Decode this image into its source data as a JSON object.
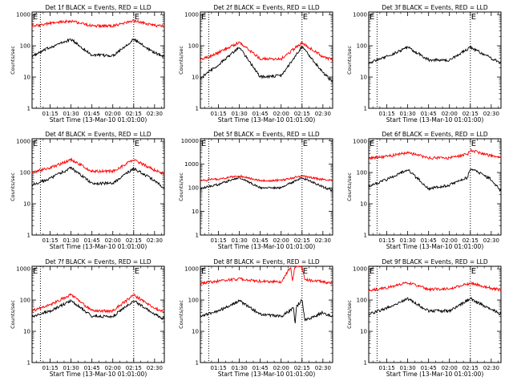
{
  "page": {
    "background": "#ffffff",
    "series_colors": {
      "events": "#000000",
      "lld": "#ff0000"
    }
  },
  "chart_data": [
    {
      "type": "line",
      "title": "Det 1f BLACK = Events, RED = LLD",
      "xlabel": "Start Time (13-Mar-10 01:01:00)",
      "ylabel": "Counts/sec",
      "yscale": "log",
      "ylim": [
        1,
        1200
      ],
      "xlim": [
        "01:02",
        "02:37"
      ],
      "x_ticks": [
        "01:15",
        "01:30",
        "01:45",
        "02:00",
        "02:15",
        "02:30"
      ],
      "y_ticks": [
        "1",
        "10",
        "100",
        "1000"
      ],
      "vlines": [
        "01:08",
        "02:15"
      ],
      "markers": [
        {
          "text": "E",
          "x": "01:02"
        },
        {
          "text": "E",
          "x": "02:15"
        }
      ],
      "series": [
        {
          "name": "BLACK",
          "color": "#000000",
          "x": [
            "01:02",
            "01:15",
            "01:30",
            "01:45",
            "02:00",
            "02:15",
            "02:30",
            "02:37"
          ],
          "values": [
            45,
            90,
            160,
            50,
            48,
            160,
            60,
            45
          ]
        },
        {
          "name": "RED",
          "color": "#ff0000",
          "x": [
            "01:02",
            "01:15",
            "01:30",
            "01:45",
            "02:00",
            "02:15",
            "02:30",
            "02:37"
          ],
          "values": [
            420,
            520,
            620,
            430,
            430,
            620,
            450,
            420
          ]
        }
      ]
    },
    {
      "type": "line",
      "title": "Det 2f BLACK = Events, RED = LLD",
      "xlabel": "Start Time (13-Mar-10 01:01:00)",
      "ylabel": "Counts/sec",
      "yscale": "log",
      "ylim": [
        1,
        1200
      ],
      "xlim": [
        "01:02",
        "02:37"
      ],
      "x_ticks": [
        "01:15",
        "01:30",
        "01:45",
        "02:00",
        "02:15",
        "02:30"
      ],
      "y_ticks": [
        "1",
        "10",
        "100",
        "1000"
      ],
      "vlines": [
        "01:08",
        "02:15"
      ],
      "markers": [
        {
          "text": "E",
          "x": "01:02"
        },
        {
          "text": "E",
          "x": "02:15"
        }
      ],
      "series": [
        {
          "name": "BLACK",
          "color": "#000000",
          "x": [
            "01:02",
            "01:15",
            "01:30",
            "01:45",
            "02:00",
            "02:15",
            "02:30",
            "02:37"
          ],
          "values": [
            9,
            25,
            90,
            10,
            11,
            95,
            14,
            7
          ]
        },
        {
          "name": "RED",
          "color": "#ff0000",
          "x": [
            "01:02",
            "01:15",
            "01:30",
            "01:45",
            "02:00",
            "02:15",
            "02:30",
            "02:37"
          ],
          "values": [
            35,
            60,
            130,
            38,
            38,
            125,
            45,
            35
          ]
        }
      ]
    },
    {
      "type": "line",
      "title": "Det 3f BLACK = Events, RED = LLD",
      "xlabel": "Start Time (13-Mar-10 01:01:00)",
      "ylabel": "Counts/sec",
      "yscale": "log",
      "ylim": [
        1,
        1200
      ],
      "xlim": [
        "01:02",
        "02:37"
      ],
      "x_ticks": [
        "01:15",
        "01:30",
        "01:45",
        "02:00",
        "02:15",
        "02:30"
      ],
      "y_ticks": [
        "1",
        "10",
        "100",
        "1000"
      ],
      "vlines": [
        "01:08",
        "02:15"
      ],
      "markers": [
        {
          "text": "E",
          "x": "01:02"
        },
        {
          "text": "E",
          "x": "02:15"
        }
      ],
      "series": [
        {
          "name": "BLACK",
          "color": "#000000",
          "x": [
            "01:02",
            "01:15",
            "01:30",
            "01:45",
            "02:00",
            "02:15",
            "02:30",
            "02:37"
          ],
          "values": [
            28,
            45,
            90,
            35,
            35,
            90,
            40,
            28
          ]
        }
      ]
    },
    {
      "type": "line",
      "title": "Det 4f BLACK = Events, RED = LLD",
      "xlabel": "Start Time (13-Mar-10 01:01:00)",
      "ylabel": "Counts/sec",
      "yscale": "log",
      "ylim": [
        1,
        1200
      ],
      "xlim": [
        "01:02",
        "02:37"
      ],
      "x_ticks": [
        "01:15",
        "01:30",
        "01:45",
        "02:00",
        "02:15",
        "02:30"
      ],
      "y_ticks": [
        "1",
        "10",
        "100",
        "1000"
      ],
      "vlines": [
        "01:08",
        "02:15"
      ],
      "markers": [
        {
          "text": "E",
          "x": "01:02"
        },
        {
          "text": "E",
          "x": "02:15"
        }
      ],
      "series": [
        {
          "name": "BLACK",
          "color": "#000000",
          "x": [
            "01:02",
            "01:15",
            "01:30",
            "01:45",
            "02:00",
            "02:15",
            "02:30",
            "02:37"
          ],
          "values": [
            40,
            65,
            140,
            45,
            45,
            135,
            55,
            30
          ]
        },
        {
          "name": "RED",
          "color": "#ff0000",
          "x": [
            "01:02",
            "01:15",
            "01:30",
            "01:45",
            "02:00",
            "02:15",
            "02:30",
            "02:37"
          ],
          "values": [
            100,
            140,
            260,
            110,
            110,
            255,
            120,
            90
          ]
        }
      ]
    },
    {
      "type": "line",
      "title": "Det 5f BLACK = Events, RED = LLD",
      "xlabel": "Start Time (13-Mar-10 01:01:00)",
      "ylabel": "Counts/sec",
      "yscale": "log",
      "ylim": [
        1,
        12000
      ],
      "xlim": [
        "01:02",
        "02:37"
      ],
      "x_ticks": [
        "01:15",
        "01:30",
        "01:45",
        "02:00",
        "02:15",
        "02:30"
      ],
      "y_ticks": [
        "1",
        "10",
        "100",
        "1000",
        "10000"
      ],
      "vlines": [
        "01:08",
        "02:15"
      ],
      "markers": [
        {
          "text": "E",
          "x": "01:02"
        },
        {
          "text": "E",
          "x": "02:15"
        }
      ],
      "series": [
        {
          "name": "BLACK",
          "color": "#000000",
          "x": [
            "01:02",
            "01:15",
            "01:30",
            "01:45",
            "02:00",
            "02:15",
            "02:30",
            "02:37"
          ],
          "values": [
            95,
            140,
            280,
            100,
            100,
            275,
            110,
            75
          ]
        },
        {
          "name": "RED",
          "color": "#ff0000",
          "x": [
            "01:02",
            "01:15",
            "01:30",
            "01:45",
            "02:00",
            "02:15",
            "02:30",
            "02:37"
          ],
          "values": [
            200,
            240,
            320,
            200,
            210,
            320,
            220,
            200
          ]
        }
      ]
    },
    {
      "type": "line",
      "title": "Det 6f BLACK = Events, RED = LLD",
      "xlabel": "Start Time (13-Mar-10 01:01:00)",
      "ylabel": "Counts/sec",
      "yscale": "log",
      "ylim": [
        1,
        1200
      ],
      "xlim": [
        "01:02",
        "02:37"
      ],
      "x_ticks": [
        "01:15",
        "01:30",
        "01:45",
        "02:00",
        "02:15",
        "02:30"
      ],
      "y_ticks": [
        "1",
        "10",
        "100",
        "1000"
      ],
      "vlines": [
        "01:08",
        "02:15"
      ],
      "markers": [
        {
          "text": "E",
          "x": "01:02"
        },
        {
          "text": "E",
          "x": "02:15"
        }
      ],
      "series": [
        {
          "name": "BLACK",
          "color": "#000000",
          "x": [
            "01:02",
            "01:15",
            "01:30",
            "01:45",
            "02:00",
            "02:13",
            "02:15",
            "02:30",
            "02:37"
          ],
          "values": [
            35,
            60,
            125,
            30,
            40,
            70,
            140,
            60,
            25
          ]
        },
        {
          "name": "RED",
          "color": "#ff0000",
          "x": [
            "01:02",
            "01:15",
            "01:30",
            "01:45",
            "02:00",
            "02:13",
            "02:15",
            "02:30",
            "02:37"
          ],
          "values": [
            280,
            330,
            430,
            290,
            290,
            380,
            520,
            340,
            300
          ]
        }
      ]
    },
    {
      "type": "line",
      "title": "Det 7f BLACK = Events, RED = LLD",
      "xlabel": "Start Time (13-Mar-10 01:01:00)",
      "ylabel": "Counts/sec",
      "yscale": "log",
      "ylim": [
        1,
        1200
      ],
      "xlim": [
        "01:02",
        "02:37"
      ],
      "x_ticks": [
        "01:15",
        "01:30",
        "01:45",
        "02:00",
        "02:15",
        "02:30"
      ],
      "y_ticks": [
        "1",
        "10",
        "100",
        "1000"
      ],
      "vlines": [
        "01:08",
        "02:15"
      ],
      "markers": [
        {
          "text": "E",
          "x": "01:02"
        },
        {
          "text": "E",
          "x": "02:15"
        }
      ],
      "series": [
        {
          "name": "BLACK",
          "color": "#000000",
          "x": [
            "01:02",
            "01:15",
            "01:30",
            "01:45",
            "02:00",
            "02:15",
            "02:30",
            "02:37"
          ],
          "values": [
            30,
            45,
            95,
            30,
            30,
            95,
            35,
            25
          ]
        },
        {
          "name": "RED",
          "color": "#ff0000",
          "x": [
            "01:02",
            "01:15",
            "01:30",
            "01:45",
            "02:00",
            "02:15",
            "02:30",
            "02:37"
          ],
          "values": [
            45,
            70,
            150,
            45,
            45,
            145,
            55,
            40
          ]
        }
      ]
    },
    {
      "type": "line",
      "title": "Det 8f BLACK = Events, RED = LLD",
      "xlabel": "Start Time (13-Mar-10 01:01:00)",
      "ylabel": "Counts/sec",
      "yscale": "log",
      "ylim": [
        1,
        1200
      ],
      "xlim": [
        "01:02",
        "02:37"
      ],
      "x_ticks": [
        "01:15",
        "01:30",
        "01:45",
        "02:00",
        "02:15",
        "02:30"
      ],
      "y_ticks": [
        "1",
        "10",
        "100",
        "1000"
      ],
      "vlines": [
        "01:08",
        "02:15"
      ],
      "markers": [
        {
          "text": "E",
          "x": "01:02"
        },
        {
          "text": "E",
          "x": "02:15"
        }
      ],
      "series": [
        {
          "name": "BLACK",
          "color": "#000000",
          "x": [
            "01:02",
            "01:15",
            "01:30",
            "01:45",
            "02:00",
            "02:09",
            "02:10",
            "02:11",
            "02:15",
            "02:17",
            "02:30",
            "02:37"
          ],
          "values": [
            30,
            45,
            95,
            35,
            30,
            55,
            18,
            60,
            100,
            22,
            40,
            28
          ]
        },
        {
          "name": "RED",
          "color": "#ff0000",
          "x": [
            "01:02",
            "01:15",
            "01:30",
            "01:45",
            "02:00",
            "02:07",
            "02:08",
            "02:10",
            "02:15",
            "02:17",
            "02:30",
            "02:37"
          ],
          "values": [
            350,
            400,
            480,
            400,
            380,
            1200,
            400,
            1200,
            1200,
            450,
            380,
            330
          ]
        }
      ]
    },
    {
      "type": "line",
      "title": "Det 9f BLACK = Events, RED = LLD",
      "xlabel": "Start Time (13-Mar-10 01:01:00)",
      "ylabel": "Counts/sec",
      "yscale": "log",
      "ylim": [
        1,
        1200
      ],
      "xlim": [
        "01:02",
        "02:37"
      ],
      "x_ticks": [
        "01:15",
        "01:30",
        "01:45",
        "02:00",
        "02:15",
        "02:30"
      ],
      "y_ticks": [
        "1",
        "10",
        "100",
        "1000"
      ],
      "vlines": [
        "01:08",
        "02:15"
      ],
      "markers": [
        {
          "text": "E",
          "x": "01:02"
        },
        {
          "text": "E",
          "x": "02:15"
        }
      ],
      "series": [
        {
          "name": "BLACK",
          "color": "#000000",
          "x": [
            "01:02",
            "01:15",
            "01:30",
            "01:45",
            "02:00",
            "02:15",
            "02:30",
            "02:37"
          ],
          "values": [
            35,
            55,
            110,
            45,
            45,
            110,
            50,
            35
          ]
        },
        {
          "name": "RED",
          "color": "#ff0000",
          "x": [
            "01:02",
            "01:15",
            "01:30",
            "01:45",
            "02:00",
            "02:15",
            "02:30",
            "02:37"
          ],
          "values": [
            200,
            250,
            360,
            220,
            230,
            340,
            240,
            210
          ]
        }
      ]
    }
  ]
}
